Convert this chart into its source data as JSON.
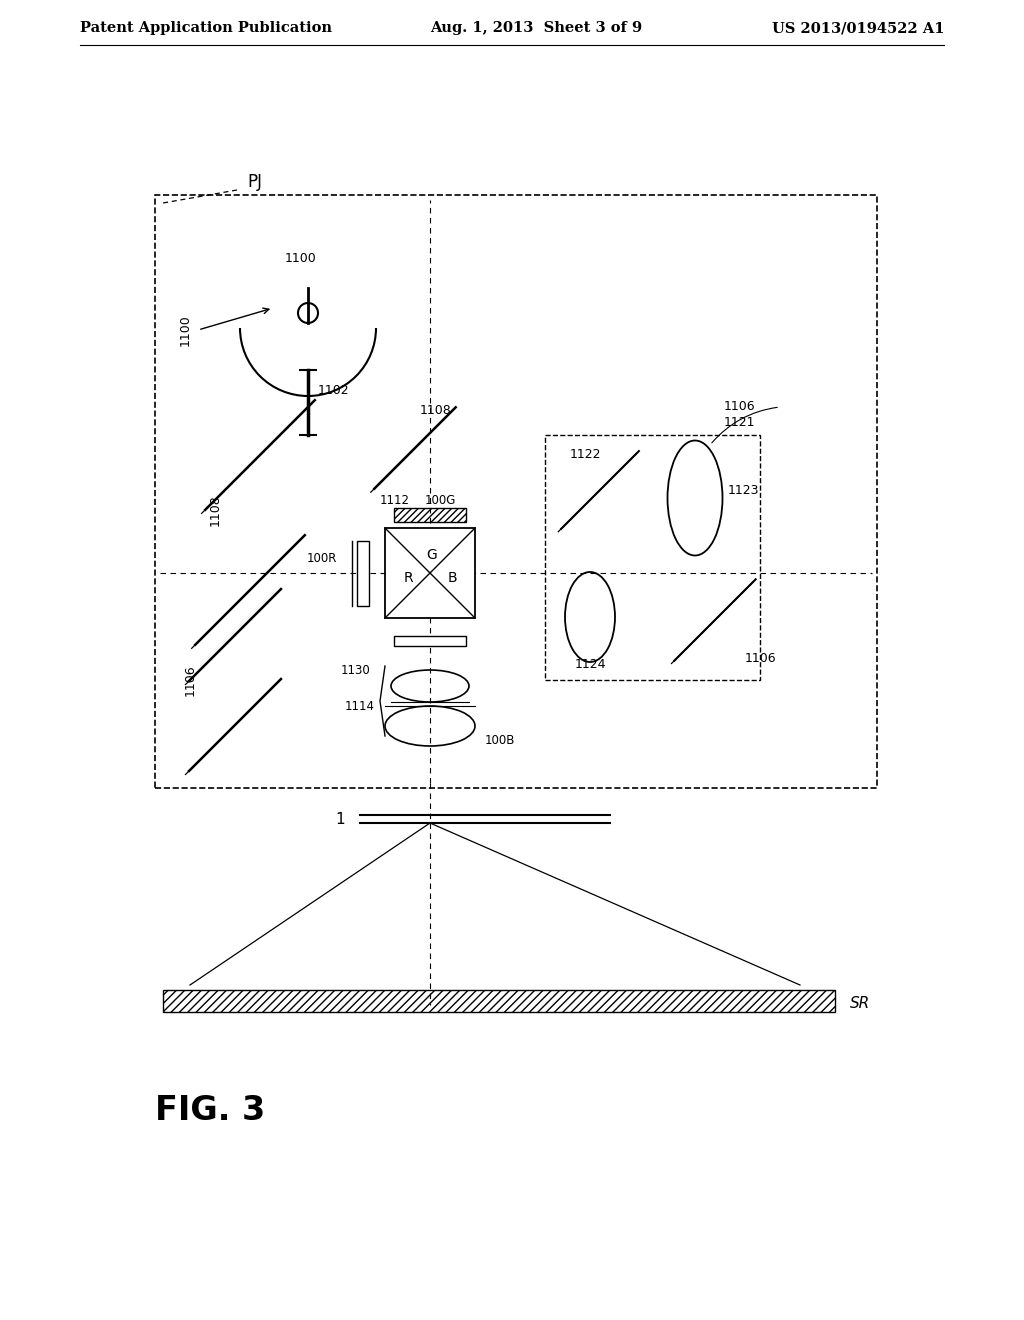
{
  "header_left": "Patent Application Publication",
  "header_mid": "Aug. 1, 2013  Sheet 3 of 9",
  "header_right": "US 2013/0194522 A1",
  "fig_label": "FIG. 3",
  "background": "#ffffff",
  "line_color": "#000000"
}
